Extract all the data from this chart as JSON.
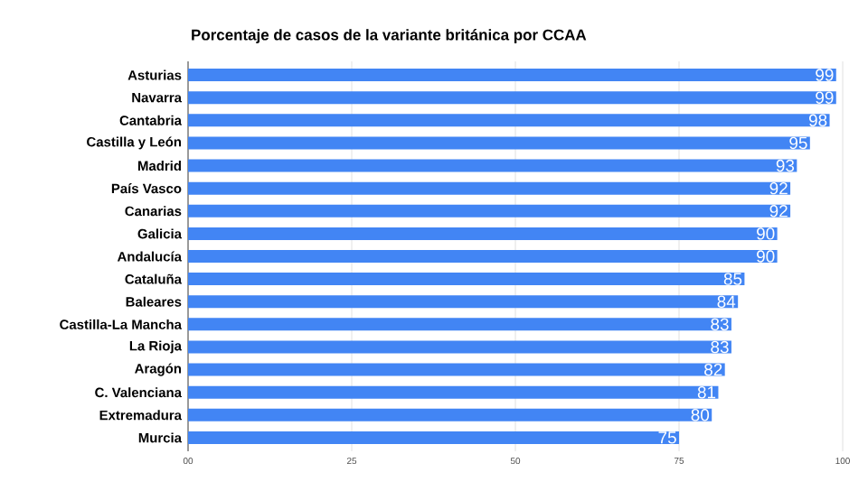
{
  "chart_data": {
    "type": "bar",
    "orientation": "horizontal",
    "title": "Porcentaje de casos de la variante británica por CCAA",
    "categories": [
      "Asturias",
      "Navarra",
      "Cantabria",
      "Castilla y León",
      "Madrid",
      "País Vasco",
      "Canarias",
      "Galicia",
      "Andalucía",
      "Cataluña",
      "Baleares",
      "Castilla-La Mancha",
      "La Rioja",
      "Aragón",
      "C. Valenciana",
      "Extremadura",
      "Murcia"
    ],
    "values": [
      99,
      99,
      98,
      95,
      93,
      92,
      92,
      90,
      90,
      85,
      84,
      83,
      83,
      82,
      81,
      80,
      75
    ],
    "color": "#4285f4",
    "data_labels": true,
    "grid": "x",
    "xlim": [
      0,
      100
    ],
    "xticks": [
      {
        "value": 0,
        "label": "00"
      },
      25,
      50,
      75,
      100
    ]
  }
}
